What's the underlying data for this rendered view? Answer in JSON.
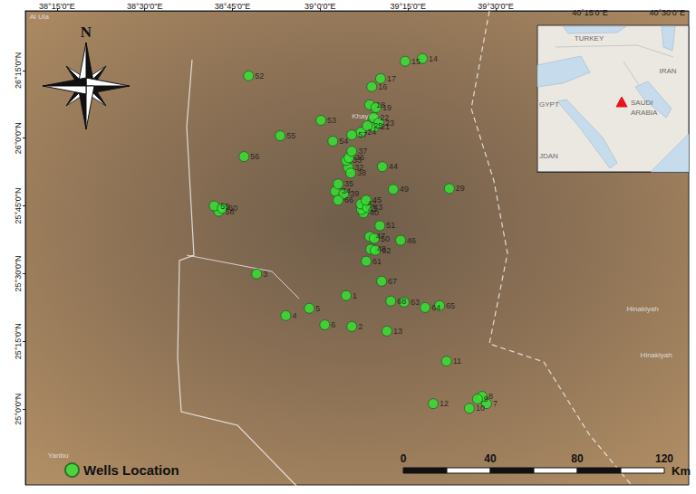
{
  "chart_data": {
    "type": "scatter",
    "series": [
      {
        "name": "Wells Location",
        "color": "#33e633",
        "marker": "circle",
        "labels": [
          "1",
          "2",
          "3",
          "4",
          "5",
          "6",
          "7",
          "8",
          "9",
          "10",
          "11",
          "12",
          "13",
          "14",
          "15",
          "16",
          "17",
          "18",
          "19",
          "21",
          "22",
          "23",
          "24",
          "25",
          "29",
          "32",
          "33",
          "34",
          "35",
          "36",
          "37",
          "38",
          "39",
          "40",
          "41",
          "42",
          "43",
          "44",
          "45",
          "46",
          "47",
          "48",
          "49",
          "50",
          "51",
          "52",
          "53",
          "54",
          "55",
          "56",
          "57",
          "58",
          "59",
          "60",
          "61",
          "62",
          "63",
          "64",
          "65",
          "66",
          "67",
          "68"
        ],
        "x": [
          39.074,
          39.09,
          38.819,
          38.902,
          38.969,
          39.013,
          39.474,
          39.461,
          39.448,
          39.425,
          39.36,
          39.322,
          39.19,
          39.291,
          39.242,
          39.147,
          39.172,
          39.141,
          39.159,
          39.154,
          39.152,
          39.167,
          39.116,
          39.134,
          39.368,
          39.08,
          39.074,
          39.043,
          39.051,
          39.082,
          39.09,
          39.087,
          39.067,
          39.123,
          39.118,
          39.116,
          39.134,
          39.177,
          39.131,
          39.229,
          39.141,
          39.144,
          39.208,
          39.154,
          39.17,
          38.796,
          39.002,
          39.036,
          38.886,
          38.783,
          39.09,
          38.711,
          38.698,
          38.721,
          39.131,
          39.157,
          39.239,
          39.299,
          39.34,
          39.051,
          39.175,
          39.201
        ],
        "y": [
          25.419,
          25.305,
          25.499,
          25.345,
          25.372,
          25.311,
          25.02,
          25.047,
          25.037,
          25.003,
          25.177,
          25.02,
          25.288,
          26.294,
          26.284,
          26.19,
          26.22,
          26.123,
          26.113,
          26.042,
          26.076,
          26.056,
          26.022,
          26.046,
          25.814,
          25.891,
          25.918,
          25.804,
          25.831,
          25.928,
          25.952,
          25.871,
          25.794,
          25.724,
          25.737,
          25.757,
          25.744,
          25.895,
          25.771,
          25.623,
          25.637,
          25.59,
          25.811,
          25.63,
          25.677,
          26.23,
          26.066,
          25.989,
          26.009,
          25.932,
          26.012,
          25.73,
          25.75,
          25.741,
          25.546,
          25.586,
          25.395,
          25.375,
          25.382,
          25.771,
          25.472,
          25.399
        ]
      }
    ],
    "xlim": [
      38.16,
      40.05
    ],
    "xticks": [
      {
        "value": 38.25,
        "label": "38°15'0\"E"
      },
      {
        "value": 38.5,
        "label": "38°30'0\"E"
      },
      {
        "value": 38.75,
        "label": "38°45'0\"E"
      },
      {
        "value": 39.0,
        "label": "39°0'0\"E"
      },
      {
        "value": 39.25,
        "label": "39°15'0\"E"
      },
      {
        "value": 39.5,
        "label": "39°30'0\"E"
      }
    ],
    "ylim": [
      24.72,
      26.47
    ],
    "yticks": [
      {
        "value": 25.0,
        "label": "25°0'0\"N"
      },
      {
        "value": 25.25,
        "label": "25°15'0\"N"
      },
      {
        "value": 25.5,
        "label": "25°30'0\"N"
      },
      {
        "value": 25.75,
        "label": "25°45'0\"N"
      },
      {
        "value": 26.0,
        "label": "26°0'0\"N"
      },
      {
        "value": 26.25,
        "label": "26°15'0\"N"
      }
    ],
    "grid": false,
    "legend": "lower left",
    "annotations": [
      {
        "text": "Khaybar",
        "x": 39.085,
        "y": 26.082
      },
      {
        "text": "Hinakiyah",
        "x": 39.868,
        "y": 25.369
      },
      {
        "text": "Hinakiyah",
        "x": 39.907,
        "y": 25.198
      },
      {
        "text": "Yanbu",
        "x": 38.219,
        "y": 24.829
      },
      {
        "text": "Al Ula",
        "x": 38.167,
        "y": 26.448
      }
    ],
    "north_label": "N",
    "scale_bar": {
      "ticks": [
        0,
        40,
        80,
        120
      ],
      "unit": "Km"
    },
    "inset": {
      "xlim": [
        40.08,
        40.57
      ],
      "xticks": [
        {
          "value": 40.25,
          "label": "40°15'0\"E"
        },
        {
          "value": 40.5,
          "label": "40°30'0\"E"
        }
      ],
      "labels": [
        "TURKEY",
        "IRAN",
        "GYPT",
        "SAUDI ARABIA",
        "JDAN"
      ],
      "marker_color": "#e8141c"
    }
  }
}
